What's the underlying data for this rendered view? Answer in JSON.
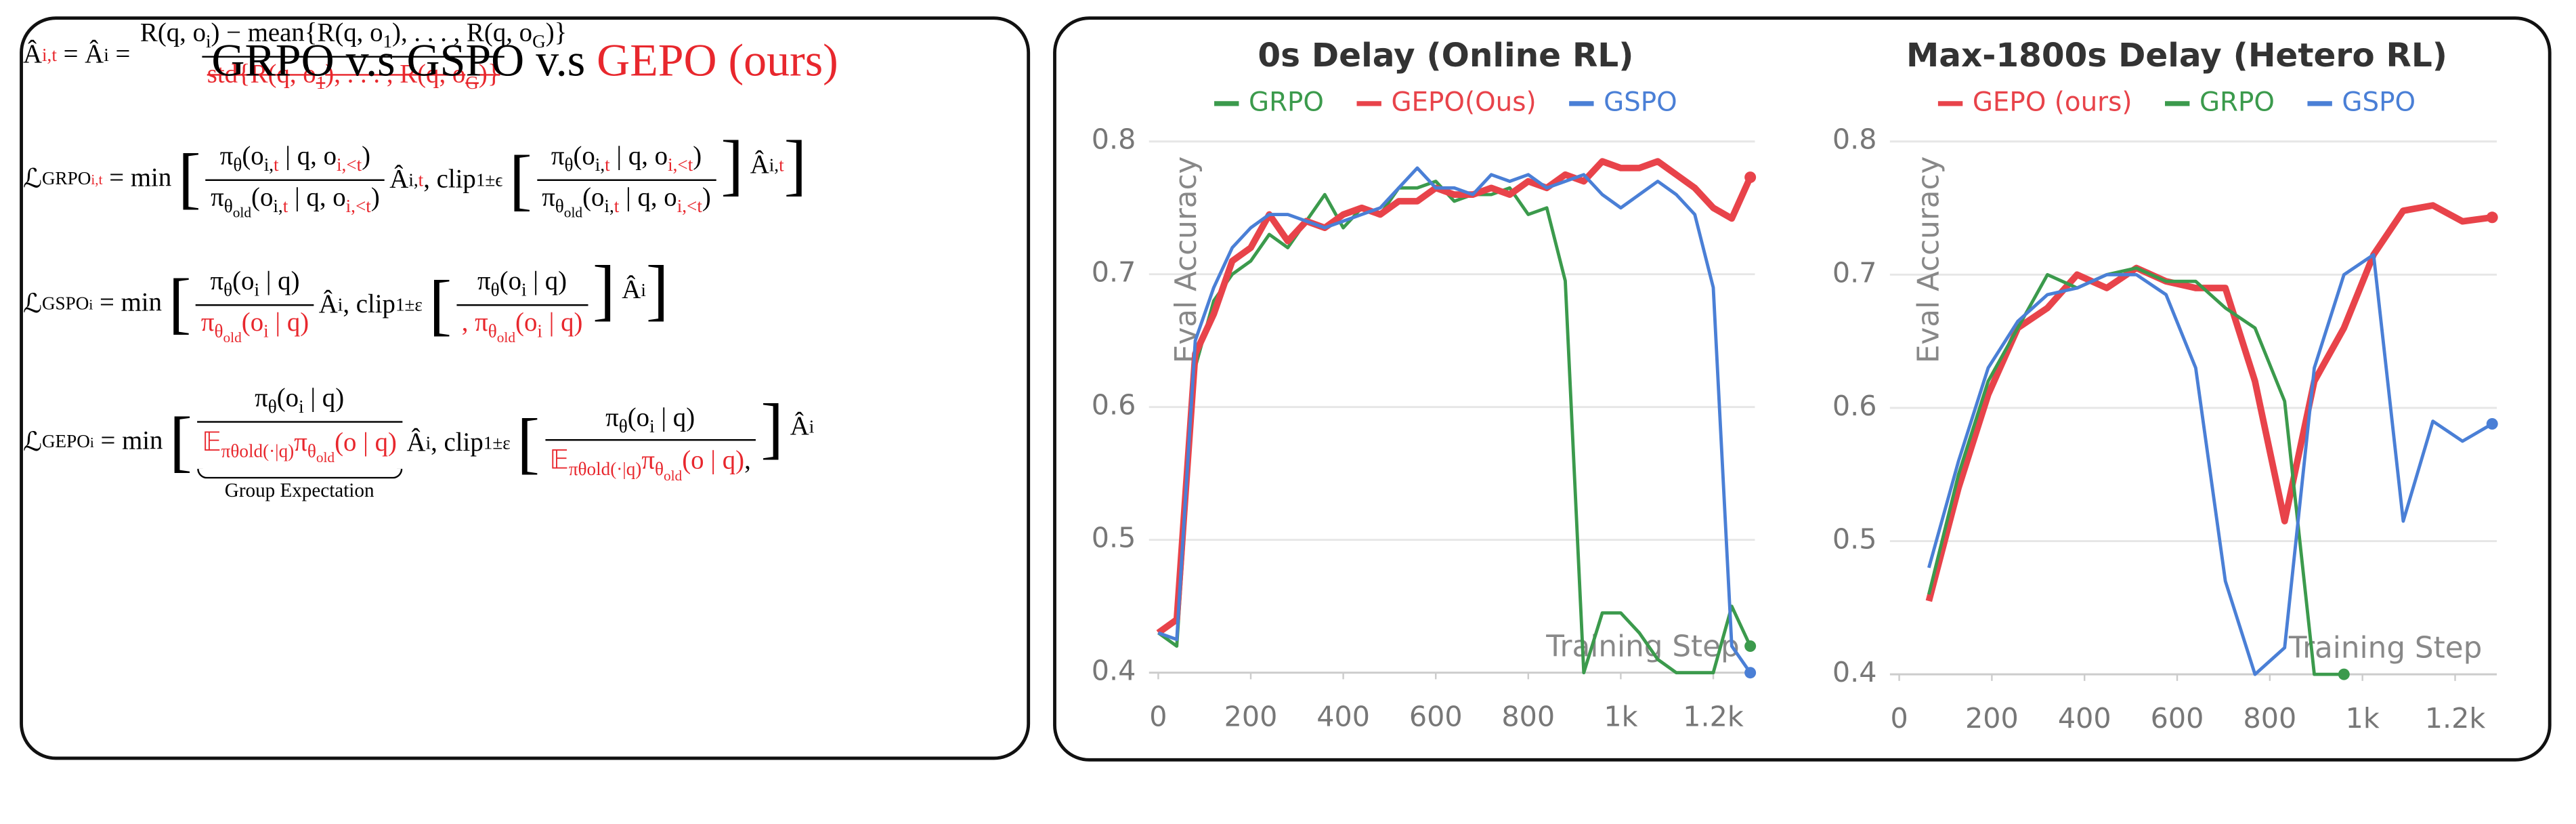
{
  "formula_panel": {
    "title": [
      {
        "text": "GRPO v.s GSPO v.s "
      },
      {
        "text": "GEPO (ours)",
        "color": "#e8272d"
      }
    ],
    "formulas": [
      {
        "items": [
          {
            "segs": [
              {
                "text": "Â"
              },
              {
                "text": "i,t",
                "style": "sub",
                "color": "#e8272d"
              },
              {
                "text": " = Â"
              },
              {
                "text": "i",
                "style": "sub"
              },
              {
                "text": " ="
              }
            ]
          },
          {
            "num": [
              {
                "text": "R(q, o"
              },
              {
                "text": "i",
                "style": "sub"
              },
              {
                "text": ") − mean{R(q, o"
              },
              {
                "text": "1",
                "style": "sub"
              },
              {
                "text": "), . . . , R(q, o"
              },
              {
                "text": "G",
                "style": "sub"
              },
              {
                "text": ")}"
              }
            ],
            "den": [
              {
                "text": "std{R(q, o",
                "color": "#e8272d",
                "strike": true
              },
              {
                "text": "1",
                "style": "sub",
                "color": "#e8272d",
                "strike": true
              },
              {
                "text": "), . . . , R(q, o",
                "color": "#e8272d",
                "strike": true
              },
              {
                "text": "G",
                "style": "sub",
                "color": "#e8272d",
                "strike": true
              },
              {
                "text": ")}",
                "color": "#e8272d",
                "strike": true
              }
            ]
          }
        ]
      },
      {
        "items": [
          {
            "segs": [
              {
                "text": "ℒ"
              },
              {
                "text": "GRPO",
                "style": "sub"
              },
              {
                "text": "i,t",
                "style": "sub2",
                "color": "#e8272d"
              },
              {
                "text": " = min "
              },
              {
                "text": "["
              }
            ]
          },
          {
            "num": [
              {
                "text": "π"
              },
              {
                "text": "θ",
                "style": "sub"
              },
              {
                "text": "(o"
              },
              {
                "text": "i,",
                "style": "sub"
              },
              {
                "text": "t",
                "style": "sub",
                "color": "#e8272d"
              },
              {
                "text": " | q, o"
              },
              {
                "text": "i,<t",
                "style": "sub",
                "color": "#e8272d"
              },
              {
                "text": ")"
              }
            ],
            "den": [
              {
                "text": "π"
              },
              {
                "text": "θ",
                "style": "sub"
              },
              {
                "text": "old",
                "style": "sub2"
              },
              {
                "text": "(o"
              },
              {
                "text": "i,",
                "style": "sub"
              },
              {
                "text": "t",
                "style": "sub",
                "color": "#e8272d"
              },
              {
                "text": " | q, o"
              },
              {
                "text": "i,<t",
                "style": "sub",
                "color": "#e8272d"
              },
              {
                "text": ")"
              }
            ]
          },
          {
            "segs": [
              {
                "text": "Â"
              },
              {
                "text": "i,",
                "style": "sub"
              },
              {
                "text": "t",
                "style": "sub",
                "color": "#e8272d"
              },
              {
                "text": ", clip"
              },
              {
                "text": "1±ϵ",
                "style": "sub"
              },
              {
                "text": " "
              },
              {
                "text": "["
              }
            ]
          },
          {
            "num": [
              {
                "text": "π"
              },
              {
                "text": "θ",
                "style": "sub"
              },
              {
                "text": "(o"
              },
              {
                "text": "i,",
                "style": "sub"
              },
              {
                "text": "t",
                "style": "sub",
                "color": "#e8272d"
              },
              {
                "text": " | q, o"
              },
              {
                "text": "i,<t",
                "style": "sub",
                "color": "#e8272d"
              },
              {
                "text": ")"
              }
            ],
            "den": [
              {
                "text": "π"
              },
              {
                "text": "θ",
                "style": "sub"
              },
              {
                "text": "old",
                "style": "sub2"
              },
              {
                "text": "(o"
              },
              {
                "text": "i,",
                "style": "sub"
              },
              {
                "text": "t",
                "style": "sub",
                "color": "#e8272d"
              },
              {
                "text": " | q, o"
              },
              {
                "text": "i,<t",
                "style": "sub",
                "color": "#e8272d"
              },
              {
                "text": ")"
              }
            ]
          },
          {
            "segs": [
              {
                "text": "]"
              },
              {
                "text": " Â"
              },
              {
                "text": "i,",
                "style": "sub"
              },
              {
                "text": "t",
                "style": "sub",
                "color": "#e8272d"
              },
              {
                "text": "]"
              }
            ]
          }
        ]
      },
      {
        "items": [
          {
            "segs": [
              {
                "text": "ℒ"
              },
              {
                "text": "GSPO",
                "style": "sub"
              },
              {
                "text": "i",
                "style": "sub2"
              },
              {
                "text": " = min "
              },
              {
                "text": "["
              }
            ]
          },
          {
            "num": [
              {
                "text": "π"
              },
              {
                "text": "θ",
                "style": "sub"
              },
              {
                "text": "(o"
              },
              {
                "text": "i",
                "style": "sub"
              },
              {
                "text": " | q)"
              }
            ],
            "den": [
              {
                "text": "π",
                "color": "#e8272d"
              },
              {
                "text": "θ",
                "style": "sub",
                "color": "#e8272d"
              },
              {
                "text": "old",
                "style": "sub2",
                "color": "#e8272d"
              },
              {
                "text": "(o",
                "color": "#e8272d"
              },
              {
                "text": "i",
                "style": "sub",
                "color": "#e8272d"
              },
              {
                "text": " | q)",
                "color": "#e8272d"
              }
            ]
          },
          {
            "segs": [
              {
                "text": "Â"
              },
              {
                "text": "i",
                "style": "sub"
              },
              {
                "text": ", clip"
              },
              {
                "text": "1±ε",
                "style": "sub"
              },
              {
                "text": " "
              },
              {
                "text": "["
              }
            ]
          },
          {
            "num": [
              {
                "text": "π"
              },
              {
                "text": "θ",
                "style": "sub"
              },
              {
                "text": "(o"
              },
              {
                "text": "i",
                "style": "sub"
              },
              {
                "text": " | q)"
              }
            ],
            "den": [
              {
                "text": ", π",
                "color": "#e8272d"
              },
              {
                "text": "θ",
                "style": "sub",
                "color": "#e8272d"
              },
              {
                "text": "old",
                "style": "sub2",
                "color": "#e8272d"
              },
              {
                "text": "(o",
                "color": "#e8272d"
              },
              {
                "text": "i",
                "style": "sub",
                "color": "#e8272d"
              },
              {
                "text": " | q)",
                "color": "#e8272d"
              }
            ]
          },
          {
            "segs": [
              {
                "text": "]"
              },
              {
                "text": " Â"
              },
              {
                "text": "i",
                "style": "sub"
              },
              {
                "text": "]"
              }
            ]
          }
        ]
      },
      {
        "items": [
          {
            "segs": [
              {
                "text": "ℒ"
              },
              {
                "text": "GEPO",
                "style": "sub"
              },
              {
                "text": "i",
                "style": "sub2"
              },
              {
                "text": " = min "
              },
              {
                "text": "["
              }
            ]
          },
          {
            "num": [
              {
                "text": "π"
              },
              {
                "text": "θ",
                "style": "sub"
              },
              {
                "text": "(o"
              },
              {
                "text": "i",
                "style": "sub"
              },
              {
                "text": " | q)"
              }
            ],
            "den": [
              {
                "text": "𝔼",
                "color": "#e8272d"
              },
              {
                "text": "πθold(·|q)",
                "style": "sub",
                "color": "#e8272d"
              },
              {
                "text": "π",
                "color": "#e8272d"
              },
              {
                "text": "θ",
                "style": "sub",
                "color": "#e8272d"
              },
              {
                "text": "old",
                "style": "sub2",
                "color": "#e8272d"
              },
              {
                "text": "(o | q)",
                "color": "#e8272d"
              }
            ],
            "underbrace": "Group Expectation"
          },
          {
            "segs": [
              {
                "text": "Â"
              },
              {
                "text": "i",
                "style": "sub"
              },
              {
                "text": ", clip"
              },
              {
                "text": "1±ε",
                "style": "sub"
              },
              {
                "text": " "
              },
              {
                "text": "["
              }
            ]
          },
          {
            "num": [
              {
                "text": "π"
              },
              {
                "text": "θ",
                "style": "sub"
              },
              {
                "text": "(o"
              },
              {
                "text": "i",
                "style": "sub"
              },
              {
                "text": " | q)"
              }
            ],
            "den": [
              {
                "text": "𝔼",
                "color": "#e8272d"
              },
              {
                "text": "πθold(·|q)",
                "style": "sub",
                "color": "#e8272d"
              },
              {
                "text": "π",
                "color": "#e8272d"
              },
              {
                "text": "θ",
                "style": "sub",
                "color": "#e8272d"
              },
              {
                "text": "old",
                "style": "sub2",
                "color": "#e8272d"
              },
              {
                "text": "(o | q)",
                "color": "#e8272d"
              },
              {
                "text": ","
              }
            ]
          },
          {
            "segs": [
              {
                "text": "]"
              },
              {
                "text": " Â"
              },
              {
                "text": "i",
                "style": "sub"
              }
            ]
          }
        ]
      }
    ]
  },
  "chart_data": [
    {
      "type": "line",
      "title": "0s Delay (Online RL)",
      "x_label": "Training Step",
      "y_label": "Eval Accuracy",
      "x": [
        0,
        40,
        80,
        120,
        160,
        200,
        240,
        280,
        320,
        360,
        400,
        440,
        480,
        520,
        560,
        600,
        640,
        680,
        720,
        760,
        800,
        840,
        880,
        920,
        960,
        1000,
        1040,
        1080,
        1120,
        1160,
        1200,
        1240,
        1280
      ],
      "xlim": [
        -20,
        1290
      ],
      "ylim": [
        0.4,
        0.8
      ],
      "xticks": [
        0,
        200,
        400,
        600,
        800,
        {
          "value": 1000,
          "label": "1k"
        },
        {
          "value": 1200,
          "label": "1.2k"
        }
      ],
      "yticks": [
        0.4,
        0.5,
        0.6,
        0.7,
        0.8
      ],
      "grid": true,
      "series": [
        {
          "name": "GRPO",
          "color": "#3b9a4c",
          "line_width": 2,
          "values": [
            0.43,
            0.42,
            0.63,
            0.68,
            0.7,
            0.71,
            0.73,
            0.72,
            0.74,
            0.76,
            0.735,
            0.75,
            0.745,
            0.765,
            0.765,
            0.77,
            0.755,
            0.76,
            0.76,
            0.765,
            0.745,
            0.75,
            0.695,
            0.4,
            0.445,
            0.445,
            0.43,
            0.41,
            0.4,
            0.4,
            0.4,
            0.45,
            0.42
          ]
        },
        {
          "name": "GEPO(Ous)",
          "color": "#e8434a",
          "line_width": 4,
          "values": [
            0.43,
            0.44,
            0.64,
            0.67,
            0.71,
            0.72,
            0.745,
            0.725,
            0.74,
            0.735,
            0.745,
            0.75,
            0.745,
            0.755,
            0.755,
            0.765,
            0.76,
            0.76,
            0.765,
            0.76,
            0.77,
            0.765,
            0.775,
            0.77,
            0.785,
            0.78,
            0.78,
            0.785,
            0.775,
            0.765,
            0.75,
            0.742,
            0.773
          ]
        },
        {
          "name": "GSPO",
          "color": "#4a7fd6",
          "line_width": 2,
          "values": [
            0.43,
            0.425,
            0.65,
            0.69,
            0.72,
            0.735,
            0.745,
            0.745,
            0.74,
            0.735,
            0.74,
            0.745,
            0.75,
            0.765,
            0.78,
            0.765,
            0.765,
            0.76,
            0.775,
            0.77,
            0.775,
            0.765,
            0.77,
            0.775,
            0.76,
            0.75,
            0.76,
            0.77,
            0.76,
            0.745,
            0.69,
            0.42,
            0.4
          ]
        }
      ]
    },
    {
      "type": "line",
      "title": "Max-1800s Delay (Hetero RL)",
      "x_label": "Training Step",
      "y_label": "Eval Accuracy",
      "x": [
        64,
        128,
        192,
        256,
        320,
        384,
        448,
        512,
        576,
        640,
        704,
        768,
        832,
        896,
        960,
        1024,
        1088,
        1152,
        1216,
        1280
      ],
      "xlim": [
        -20,
        1290
      ],
      "ylim": [
        0.4,
        0.8
      ],
      "xticks": [
        0,
        200,
        400,
        600,
        800,
        {
          "value": 1000,
          "label": "1k"
        },
        {
          "value": 1200,
          "label": "1.2k"
        }
      ],
      "yticks": [
        0.4,
        0.5,
        0.6,
        0.7,
        0.8
      ],
      "grid": true,
      "series": [
        {
          "name": "GEPO (ours)",
          "color": "#e8434a",
          "line_width": 4,
          "values": [
            0.455,
            0.54,
            0.61,
            0.66,
            0.675,
            0.7,
            0.69,
            0.705,
            0.695,
            0.69,
            0.69,
            0.62,
            0.515,
            0.62,
            0.66,
            0.715,
            0.748,
            0.752,
            0.74,
            0.743
          ]
        },
        {
          "name": "GRPO",
          "color": "#3b9a4c",
          "line_width": 2,
          "values": [
            0.46,
            0.55,
            0.62,
            0.66,
            0.7,
            0.69,
            0.7,
            0.705,
            0.695,
            0.695,
            0.675,
            0.66,
            0.605,
            0.4,
            0.4,
            null,
            null,
            null,
            null,
            null
          ]
        },
        {
          "name": "GSPO",
          "color": "#4a7fd6",
          "line_width": 2,
          "values": [
            0.48,
            0.56,
            0.63,
            0.665,
            0.685,
            0.69,
            0.7,
            0.7,
            0.685,
            0.63,
            0.47,
            0.4,
            0.42,
            0.63,
            0.7,
            0.715,
            0.515,
            0.59,
            0.575,
            0.588
          ]
        }
      ]
    }
  ]
}
